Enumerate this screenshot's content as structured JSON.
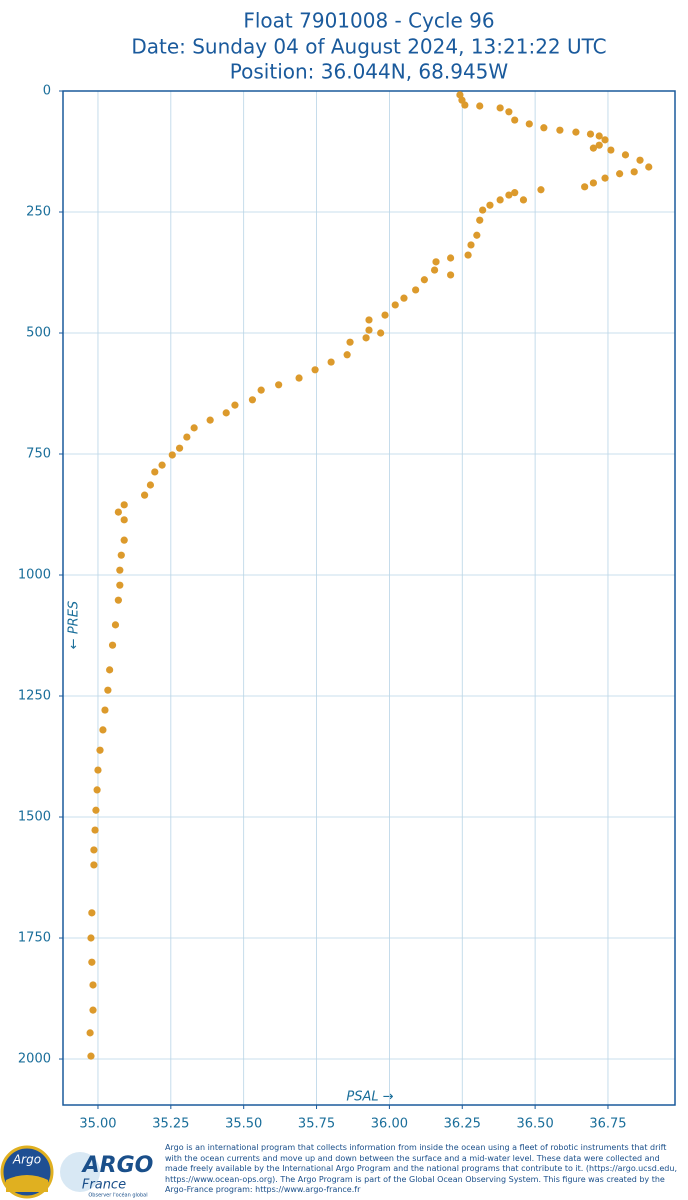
{
  "chart_data": {
    "type": "scatter",
    "title": [
      "Float 7901008 - Cycle 96",
      "Date: Sunday 04 of August 2024, 13:21:22 UTC",
      "Position: 36.044N, 68.945W"
    ],
    "xlabel": "PSAL →",
    "ylabel": "← PRES",
    "color": "#dc9a2c",
    "grid": true,
    "xlim": [
      34.88,
      36.98
    ],
    "ylim": [
      2095,
      0
    ],
    "xticks": [
      {
        "value": 35.0,
        "label": "35.00"
      },
      {
        "value": 35.25,
        "label": "35.25"
      },
      {
        "value": 35.5,
        "label": "35.50"
      },
      {
        "value": 35.75,
        "label": "35.75"
      },
      {
        "value": 36.0,
        "label": "36.00"
      },
      {
        "value": 36.25,
        "label": "36.25"
      },
      {
        "value": 36.5,
        "label": "36.50"
      },
      {
        "value": 36.75,
        "label": "36.75"
      }
    ],
    "yticks": [
      0,
      250,
      500,
      750,
      1000,
      1250,
      1500,
      1750,
      2000
    ],
    "x": [
      36.242,
      36.249,
      36.259,
      36.31,
      36.38,
      36.41,
      36.43,
      36.48,
      36.53,
      36.585,
      36.64,
      36.69,
      36.72,
      36.74,
      36.72,
      36.7,
      36.76,
      36.81,
      36.86,
      36.89,
      36.84,
      36.79,
      36.74,
      36.7,
      36.67,
      36.52,
      36.46,
      36.41,
      36.43,
      36.38,
      36.345,
      36.32,
      36.31,
      36.3,
      36.28,
      36.27,
      36.21,
      36.16,
      36.155,
      36.21,
      36.12,
      36.09,
      36.05,
      36.02,
      35.985,
      35.93,
      35.93,
      35.97,
      35.92,
      35.865,
      35.855,
      35.8,
      35.745,
      35.69,
      35.62,
      35.56,
      35.53,
      35.47,
      35.44,
      35.385,
      35.33,
      35.305,
      35.28,
      35.255,
      35.22,
      35.195,
      35.18,
      35.16,
      35.09,
      35.07,
      35.09,
      35.09,
      35.08,
      35.075,
      35.075,
      35.07,
      35.06,
      35.05,
      35.04,
      35.034,
      35.024,
      35.017,
      35.007,
      35.0,
      34.997,
      34.993,
      34.99,
      34.986,
      34.986,
      34.979,
      34.976,
      34.979,
      34.983,
      34.983,
      34.973,
      34.976
    ],
    "values": [
      8,
      19,
      29,
      31,
      35,
      43,
      60,
      68,
      76,
      81,
      85,
      89,
      93,
      101,
      112,
      118,
      122,
      132,
      143,
      157,
      167,
      171,
      180,
      190,
      198,
      204,
      225,
      215,
      210,
      225,
      236,
      246,
      267,
      298,
      318,
      339,
      345,
      353,
      370,
      380,
      390,
      411,
      428,
      442,
      463,
      473,
      494,
      500,
      510,
      519,
      545,
      560,
      576,
      593,
      607,
      618,
      638,
      649,
      665,
      680,
      696,
      715,
      738,
      752,
      773,
      787,
      814,
      835,
      855,
      870,
      886,
      928,
      959,
      990,
      1021,
      1052,
      1103,
      1145,
      1196,
      1238,
      1279,
      1320,
      1362,
      1403,
      1444,
      1486,
      1527,
      1568,
      1599,
      1698,
      1750,
      1800,
      1847,
      1899,
      1946,
      1994
    ]
  },
  "footer": {
    "logo1": "Argo",
    "logo2": "ARGO",
    "logo3": "France",
    "logo4": "Observer l'océan global",
    "text": "Argo is an international program that collects information from inside the ocean using a fleet of robotic instruments that drift with the ocean currents and move up and down between the surface and a mid-water level. These data were collected and made freely available by the International Argo Program and the national programs that contribute to it. (https://argo.ucsd.edu, https://www.ocean-ops.org). The Argo Program is part of the Global Ocean Observing System. This figure was created by the Argo-France program: https://www.argo-france.fr"
  }
}
